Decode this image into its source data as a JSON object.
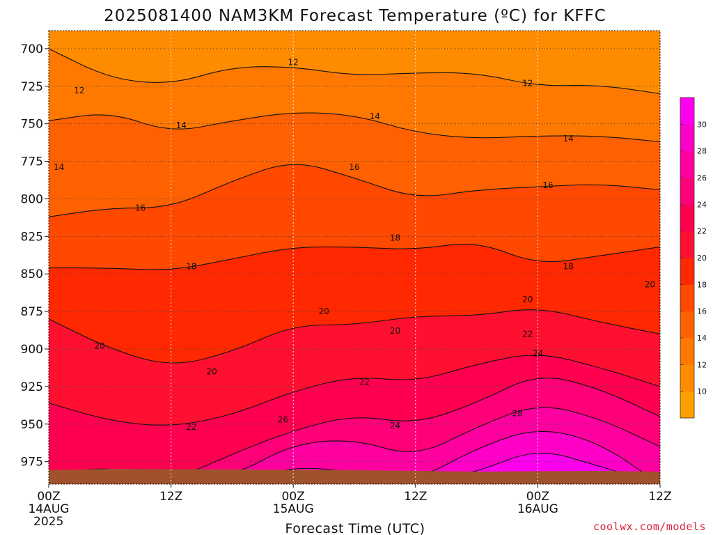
{
  "chart_data": {
    "type": "heatmap",
    "title": "2025081400 NAM3KM Forecast Temperature (ºC) for KFFC",
    "xlabel": "Forecast Time (UTC)",
    "ylabel": "",
    "x_unit": "hours",
    "xlim": [
      0,
      60
    ],
    "y_unit": "hPa",
    "ylim": [
      688,
      990
    ],
    "y_reversed": true,
    "y_ticks": [
      "700",
      "725",
      "750",
      "775",
      "800",
      "825",
      "850",
      "875",
      "900",
      "925",
      "950",
      "975"
    ],
    "x_ticks": [
      {
        "hour": 0,
        "line1": "00Z",
        "line2": "14AUG",
        "line3": "2025"
      },
      {
        "hour": 12,
        "line1": "12Z",
        "line2": "",
        "line3": ""
      },
      {
        "hour": 24,
        "line1": "00Z",
        "line2": "15AUG",
        "line3": ""
      },
      {
        "hour": 36,
        "line1": "12Z",
        "line2": "",
        "line3": ""
      },
      {
        "hour": 48,
        "line1": "00Z",
        "line2": "16AUG",
        "line3": ""
      },
      {
        "hour": 60,
        "line1": "12Z",
        "line2": "",
        "line3": ""
      }
    ],
    "grid": true,
    "contour_interval": 2,
    "colorbar": {
      "levels": [
        8,
        10,
        12,
        14,
        16,
        18,
        20,
        22,
        24,
        26,
        28,
        30,
        32
      ],
      "labels": [
        "10",
        "12",
        "14",
        "16",
        "18",
        "20",
        "22",
        "24",
        "26",
        "28",
        "30"
      ],
      "colors": [
        "#ffa000",
        "#ff8c00",
        "#ff7800",
        "#ff6000",
        "#ff4800",
        "#ff2800",
        "#ff1030",
        "#ff0050",
        "#ff0078",
        "#ff00a0",
        "#ff00c8",
        "#ff00ee"
      ]
    },
    "hours": [
      0,
      6,
      12,
      18,
      24,
      30,
      36,
      42,
      48,
      54,
      60
    ],
    "isotherms": [
      {
        "temp": 12,
        "pressure": [
          700,
          720,
          724,
          712,
          712,
          718,
          716,
          716,
          725,
          724,
          730
        ]
      },
      {
        "temp": 14,
        "pressure": [
          748,
          742,
          756,
          748,
          742,
          744,
          756,
          760,
          758,
          758,
          762
        ]
      },
      {
        "temp": 16,
        "pressure": [
          812,
          806,
          806,
          788,
          774,
          786,
          800,
          794,
          792,
          790,
          794
        ]
      },
      {
        "temp": 18,
        "pressure": [
          846,
          846,
          848,
          840,
          832,
          832,
          834,
          828,
          844,
          838,
          832
        ]
      },
      {
        "temp": 20,
        "pressure": [
          880,
          900,
          912,
          902,
          884,
          884,
          878,
          878,
          872,
          882,
          890
        ]
      },
      {
        "temp": 22,
        "pressure": [
          936,
          948,
          952,
          944,
          928,
          918,
          922,
          910,
          902,
          912,
          925
        ]
      },
      {
        "temp": 24,
        "pressure": [
          984,
          978,
          988,
          970,
          954,
          944,
          950,
          936,
          916,
          926,
          945
        ]
      },
      {
        "temp": 26,
        "pressure": [
          990,
          990,
          990,
          985,
          963,
          960,
          972,
          952,
          936,
          946,
          965
        ]
      },
      {
        "temp": 28,
        "pressure": [
          990,
          990,
          990,
          990,
          978,
          982,
          988,
          966,
          952,
          962,
          990
        ]
      },
      {
        "temp": 30,
        "pressure": [
          990,
          990,
          990,
          990,
          990,
          990,
          990,
          982,
          966,
          978,
          990
        ]
      }
    ],
    "contour_labels": [
      {
        "text": "12",
        "hour": 3,
        "pressure": 728
      },
      {
        "text": "12",
        "hour": 24,
        "pressure": 709
      },
      {
        "text": "12",
        "hour": 47,
        "pressure": 723
      },
      {
        "text": "14",
        "hour": 1,
        "pressure": 779
      },
      {
        "text": "14",
        "hour": 13,
        "pressure": 751
      },
      {
        "text": "14",
        "hour": 32,
        "pressure": 745
      },
      {
        "text": "14",
        "hour": 51,
        "pressure": 760
      },
      {
        "text": "16",
        "hour": 9,
        "pressure": 806
      },
      {
        "text": "16",
        "hour": 30,
        "pressure": 779
      },
      {
        "text": "16",
        "hour": 49,
        "pressure": 791
      },
      {
        "text": "18",
        "hour": 14,
        "pressure": 845
      },
      {
        "text": "18",
        "hour": 34,
        "pressure": 826
      },
      {
        "text": "18",
        "hour": 51,
        "pressure": 845
      },
      {
        "text": "20",
        "hour": 5,
        "pressure": 898
      },
      {
        "text": "20",
        "hour": 16,
        "pressure": 915
      },
      {
        "text": "20",
        "hour": 27,
        "pressure": 875
      },
      {
        "text": "20",
        "hour": 34,
        "pressure": 888
      },
      {
        "text": "20",
        "hour": 47,
        "pressure": 867
      },
      {
        "text": "20",
        "hour": 59,
        "pressure": 857
      },
      {
        "text": "22",
        "hour": 14,
        "pressure": 952
      },
      {
        "text": "22",
        "hour": 31,
        "pressure": 922
      },
      {
        "text": "22",
        "hour": 47,
        "pressure": 890
      },
      {
        "text": "24",
        "hour": 34,
        "pressure": 951
      },
      {
        "text": "24",
        "hour": 48,
        "pressure": 903
      },
      {
        "text": "26",
        "hour": 23,
        "pressure": 947
      },
      {
        "text": "28",
        "hour": 46,
        "pressure": 943
      }
    ]
  },
  "watermark": "coolwx.com/models",
  "terrain_color": "#a0522d"
}
